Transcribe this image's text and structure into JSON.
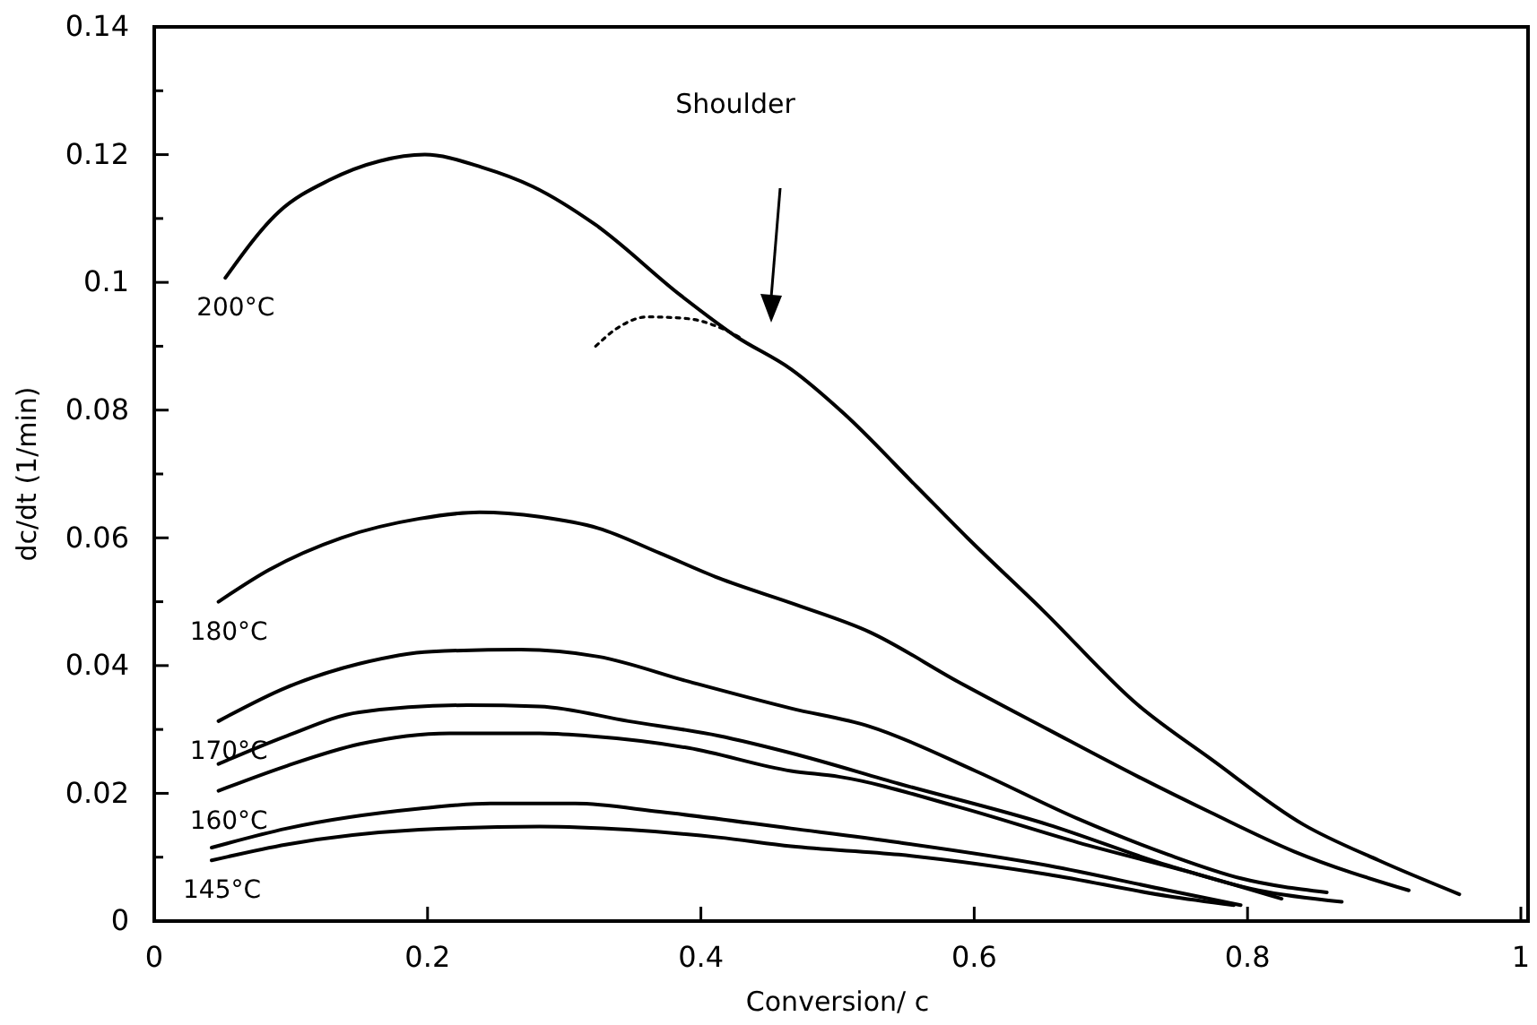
{
  "chart_data": {
    "type": "line",
    "xlabel": "Conversion/ c",
    "ylabel": "dc/dt (1/min)",
    "xlim": [
      0,
      1
    ],
    "ylim": [
      0,
      0.14
    ],
    "xticks": [
      0,
      0.2,
      0.4,
      0.6,
      0.8,
      1
    ],
    "yticks": [
      0,
      {
        "value": 0.01,
        "label": null
      },
      0.02,
      {
        "value": 0.03,
        "label": null
      },
      0.04,
      {
        "value": 0.05,
        "label": null
      },
      0.06,
      {
        "value": 0.07,
        "label": null
      },
      0.08,
      {
        "value": 0.09,
        "label": null
      },
      0.1,
      {
        "value": 0.11,
        "label": null
      },
      0.12,
      {
        "value": 0.13,
        "label": null
      },
      0.14
    ],
    "grid": false,
    "marker": "none",
    "line_style": "solid",
    "annotations": [
      "Shoulder"
    ],
    "series": [
      {
        "name": "200°C",
        "color": "#000000",
        "x": [
          0.052,
          0.091,
          0.128,
          0.165,
          0.198,
          0.24,
          0.277,
          0.323,
          0.385,
          0.426,
          0.466,
          0.505,
          0.558,
          0.595,
          0.65,
          0.72,
          0.773,
          0.841,
          0.896,
          0.955
        ],
        "values": [
          0.1007,
          0.111,
          0.116,
          0.119,
          0.12,
          0.118,
          0.115,
          0.109,
          0.098,
          0.0915,
          0.0864,
          0.0794,
          0.068,
          0.06,
          0.0487,
          0.0338,
          0.0254,
          0.0151,
          0.0095,
          0.0042
        ]
      },
      {
        "color": "#000000",
        "line_style": "dotted",
        "x": [
          0.323,
          0.34,
          0.361,
          0.391,
          0.413,
          0.43
        ],
        "values": [
          0.09,
          0.093,
          0.0946,
          0.0943,
          0.093,
          0.0912
        ]
      },
      {
        "name": "180°C",
        "color": "#000000",
        "x": [
          0.047,
          0.084,
          0.137,
          0.194,
          0.238,
          0.282,
          0.325,
          0.37,
          0.413,
          0.47,
          0.523,
          0.588,
          0.654,
          0.72,
          0.773,
          0.834,
          0.918
        ],
        "values": [
          0.05,
          0.055,
          0.06,
          0.063,
          0.064,
          0.0633,
          0.0615,
          0.0576,
          0.0537,
          0.0495,
          0.0453,
          0.0375,
          0.03,
          0.0226,
          0.017,
          0.0109,
          0.0048
        ]
      },
      {
        "name": "170°C",
        "color": "#000000",
        "x": [
          0.047,
          0.097,
          0.15,
          0.203,
          0.268,
          0.325,
          0.391,
          0.466,
          0.523,
          0.601,
          0.676,
          0.742,
          0.795,
          0.858
        ],
        "values": [
          0.0313,
          0.0366,
          0.0403,
          0.0422,
          0.0425,
          0.0414,
          0.0375,
          0.0333,
          0.0305,
          0.0235,
          0.016,
          0.0104,
          0.0067,
          0.0045
        ]
      },
      {
        "color": "#000000",
        "x": [
          0.047,
          0.097,
          0.15,
          0.229,
          0.282,
          0.347,
          0.413,
          0.466,
          0.545,
          0.654,
          0.742,
          0.808,
          0.869
        ],
        "values": [
          0.0246,
          0.029,
          0.0327,
          0.0338,
          0.0336,
          0.0313,
          0.029,
          0.0263,
          0.0215,
          0.0151,
          0.0087,
          0.0048,
          0.003
        ]
      },
      {
        "name": "160°C",
        "color": "#000000",
        "x": [
          0.047,
          0.097,
          0.15,
          0.216,
          0.282,
          0.317,
          0.391,
          0.466,
          0.501,
          0.588,
          0.676,
          0.764,
          0.825
        ],
        "values": [
          0.0204,
          0.0243,
          0.0277,
          0.0294,
          0.0294,
          0.029,
          0.0271,
          0.0235,
          0.0226,
          0.0179,
          0.0123,
          0.0073,
          0.0035
        ]
      },
      {
        "color": "#000000",
        "x": [
          0.042,
          0.097,
          0.194,
          0.246,
          0.308,
          0.37,
          0.466,
          0.545,
          0.654,
          0.742,
          0.795
        ],
        "values": [
          0.0115,
          0.0145,
          0.0176,
          0.0184,
          0.0184,
          0.0171,
          0.0145,
          0.0123,
          0.0087,
          0.0048,
          0.0025
        ]
      },
      {
        "name": "145°C",
        "color": "#000000",
        "x": [
          0.042,
          0.097,
          0.194,
          0.282,
          0.347,
          0.413,
          0.466,
          0.545,
          0.654,
          0.742,
          0.79
        ],
        "values": [
          0.0095,
          0.012,
          0.0143,
          0.0148,
          0.0143,
          0.0131,
          0.0117,
          0.0104,
          0.0073,
          0.0039,
          0.0025
        ]
      }
    ]
  }
}
